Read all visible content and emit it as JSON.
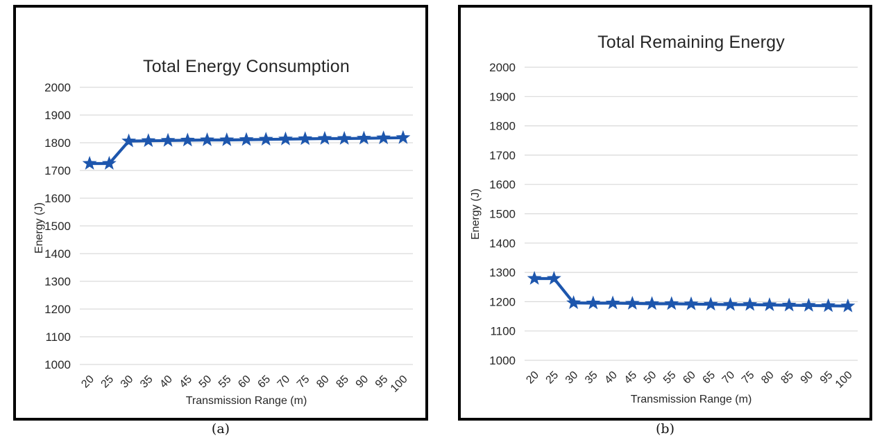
{
  "colors": {
    "line_blue": "#1d56ad",
    "grid_gray": "#d9d9d9",
    "text_dark": "#262626",
    "panel_border": "#000000",
    "background": "#ffffff"
  },
  "chart_data": [
    {
      "type": "line",
      "title": "Total Energy Consumption",
      "xlabel": "Transmission Range (m)",
      "ylabel": "Energy (J)",
      "caption": "(a)",
      "legend": "none",
      "grid": true,
      "marker": "star",
      "line_color": "#1d56ad",
      "categories": [
        20,
        25,
        30,
        35,
        40,
        45,
        50,
        55,
        60,
        65,
        70,
        75,
        80,
        85,
        90,
        95,
        100
      ],
      "yticks": [
        1000,
        1100,
        1200,
        1300,
        1400,
        1500,
        1600,
        1700,
        1800,
        1900,
        2000
      ],
      "ylim": [
        1000,
        2000
      ],
      "ytick_step": 100,
      "series": [
        {
          "name": "Total Energy Consumption",
          "values": [
            1725,
            1725,
            1806,
            1807,
            1808,
            1809,
            1810,
            1810,
            1811,
            1812,
            1813,
            1814,
            1815,
            1815,
            1816,
            1817,
            1818
          ]
        }
      ]
    },
    {
      "type": "line",
      "title": "Total Remaining Energy",
      "xlabel": "Transmission Range (m)",
      "ylabel": "Energy (J)",
      "caption": "(b)",
      "legend": "none",
      "grid": true,
      "marker": "star",
      "line_color": "#1d56ad",
      "categories": [
        20,
        25,
        30,
        35,
        40,
        45,
        50,
        55,
        60,
        65,
        70,
        75,
        80,
        85,
        90,
        95,
        100
      ],
      "yticks": [
        1000,
        1100,
        1200,
        1300,
        1400,
        1500,
        1600,
        1700,
        1800,
        1900,
        2000
      ],
      "ylim": [
        1000,
        2000
      ],
      "ytick_step": 100,
      "series": [
        {
          "name": "Total Remaining Energy",
          "values": [
            1279,
            1279,
            1196,
            1195,
            1195,
            1194,
            1193,
            1193,
            1192,
            1191,
            1190,
            1190,
            1189,
            1188,
            1187,
            1186,
            1185
          ]
        }
      ]
    }
  ]
}
